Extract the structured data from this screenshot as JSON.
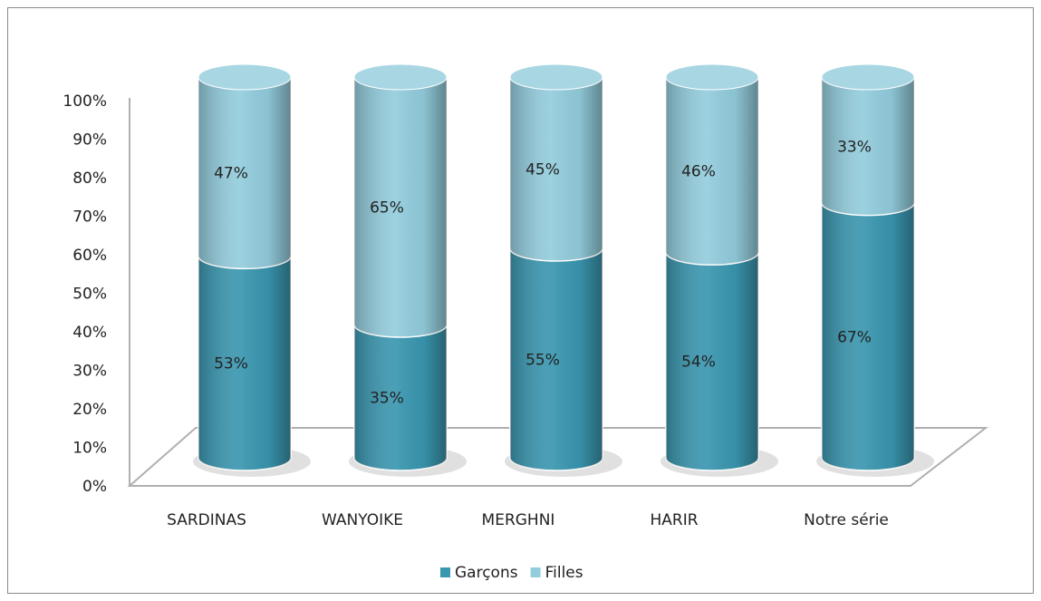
{
  "chart_data": {
    "type": "bar",
    "stacked": true,
    "categories": [
      "SARDINAS",
      "WANYOIKE",
      "MERGHNI",
      "HARIR",
      "Notre série"
    ],
    "series": [
      {
        "name": "Garçons",
        "color": "#3a97b0",
        "values": [
          53,
          35,
          55,
          54,
          67
        ],
        "value_labels": [
          "53%",
          "35%",
          "55%",
          "54%",
          "67%"
        ]
      },
      {
        "name": "Filles",
        "color": "#93cddd",
        "values": [
          47,
          65,
          45,
          46,
          33
        ],
        "value_labels": [
          "47%",
          "65%",
          "45%",
          "46%",
          "33%"
        ]
      }
    ],
    "ylim": [
      0,
      100
    ],
    "yticks": [
      {
        "value": 0,
        "label": "0%"
      },
      {
        "value": 10,
        "label": "10%"
      },
      {
        "value": 20,
        "label": "20%"
      },
      {
        "value": 30,
        "label": "30%"
      },
      {
        "value": 40,
        "label": "40%"
      },
      {
        "value": 50,
        "label": "50%"
      },
      {
        "value": 60,
        "label": "60%"
      },
      {
        "value": 70,
        "label": "70%"
      },
      {
        "value": 80,
        "label": "80%"
      },
      {
        "value": 90,
        "label": "90%"
      },
      {
        "value": 100,
        "label": "100%"
      }
    ],
    "legend": "bottom"
  }
}
